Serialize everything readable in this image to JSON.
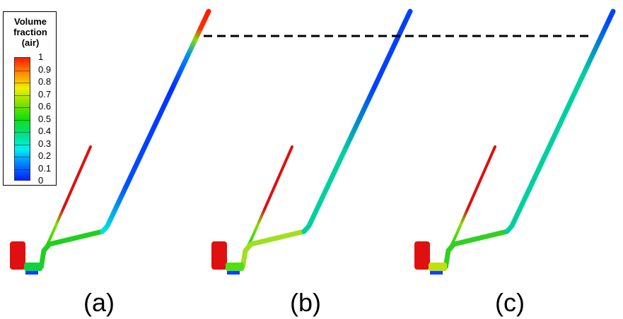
{
  "legend": {
    "title_lines": [
      "Volume",
      "fraction",
      "(air)"
    ],
    "ticks": [
      "1",
      "0.9",
      "0.8",
      "0.7",
      "0.6",
      "0.5",
      "0.4",
      "0.3",
      "0.2",
      "0.1",
      "0"
    ],
    "colormap": [
      "#0020ff",
      "#0090ff",
      "#00f0f0",
      "#00e080",
      "#10e010",
      "#80e000",
      "#f0f000",
      "#ff9000",
      "#ff1a00"
    ]
  },
  "panels": [
    {
      "label": "(a)"
    },
    {
      "label": "(b)"
    },
    {
      "label": "(c)"
    }
  ]
}
